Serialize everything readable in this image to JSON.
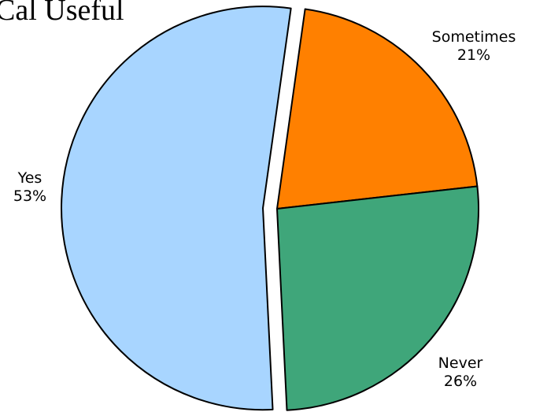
{
  "chart_data": {
    "type": "pie",
    "title": "Cal Useful",
    "slices": [
      {
        "label": "Yes",
        "percent_label": "53%",
        "value": 53,
        "color": "#A8D5FF",
        "exploded": true
      },
      {
        "label": "Sometimes",
        "percent_label": "21%",
        "value": 21,
        "color": "#FF8000",
        "exploded": false
      },
      {
        "label": "Never",
        "percent_label": "26%",
        "value": 26,
        "color": "#3FA67A",
        "exploded": false
      }
    ],
    "legend": "none",
    "labels_position": "outside"
  }
}
